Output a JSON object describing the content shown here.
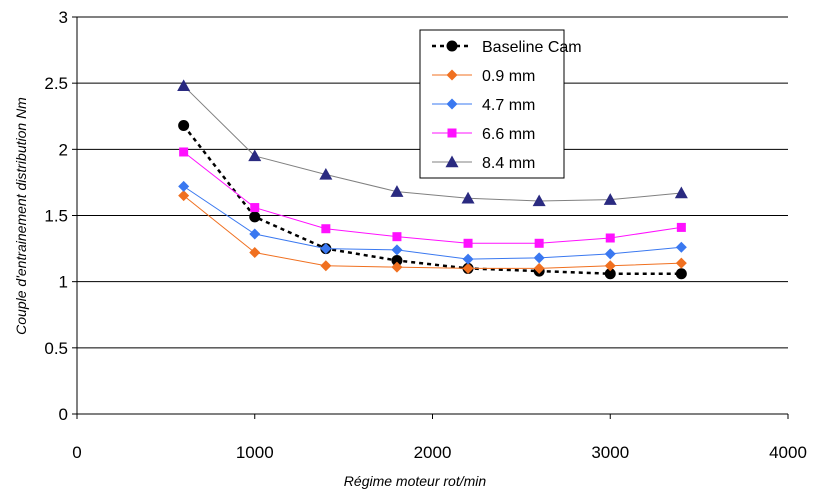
{
  "chart_data": {
    "type": "line",
    "title": "",
    "xlabel": "Régime moteur rot/min",
    "ylabel": "Couple d'entrainement distribution Nm",
    "xlim": [
      0,
      4000
    ],
    "ylim": [
      0,
      3
    ],
    "x_ticks": [
      "0",
      "1000",
      "2000",
      "3000",
      "4000"
    ],
    "y_ticks": [
      "0",
      "0.5",
      "1",
      "1.5",
      "2",
      "2.5",
      "3"
    ],
    "grid": "horizontal",
    "legend_position": "top-right",
    "x": [
      600,
      1000,
      1400,
      1800,
      2200,
      2600,
      3000,
      3400
    ],
    "series": [
      {
        "name": "Baseline Cam",
        "color": "#000000",
        "marker": "circle",
        "dashed": true,
        "values": [
          2.18,
          1.49,
          1.25,
          1.16,
          1.1,
          1.08,
          1.06,
          1.06
        ]
      },
      {
        "name": "0.9 mm",
        "color": "#f07020",
        "marker": "diamond",
        "dashed": false,
        "values": [
          1.65,
          1.22,
          1.12,
          1.11,
          1.1,
          1.1,
          1.12,
          1.14
        ]
      },
      {
        "name": "4.7 mm",
        "color": "#3a78f0",
        "marker": "diamond",
        "dashed": false,
        "values": [
          1.72,
          1.36,
          1.25,
          1.24,
          1.17,
          1.18,
          1.21,
          1.26
        ]
      },
      {
        "name": "6.6 mm",
        "color": "#ff10ff",
        "marker": "square",
        "dashed": false,
        "values": [
          1.98,
          1.56,
          1.4,
          1.34,
          1.29,
          1.29,
          1.33,
          1.41
        ]
      },
      {
        "name": "8.4 mm",
        "color": "#2a2a80",
        "marker": "triangle",
        "dashed": false,
        "line_color": "#808080",
        "values": [
          2.48,
          1.95,
          1.81,
          1.68,
          1.63,
          1.61,
          1.62,
          1.67
        ]
      }
    ]
  }
}
